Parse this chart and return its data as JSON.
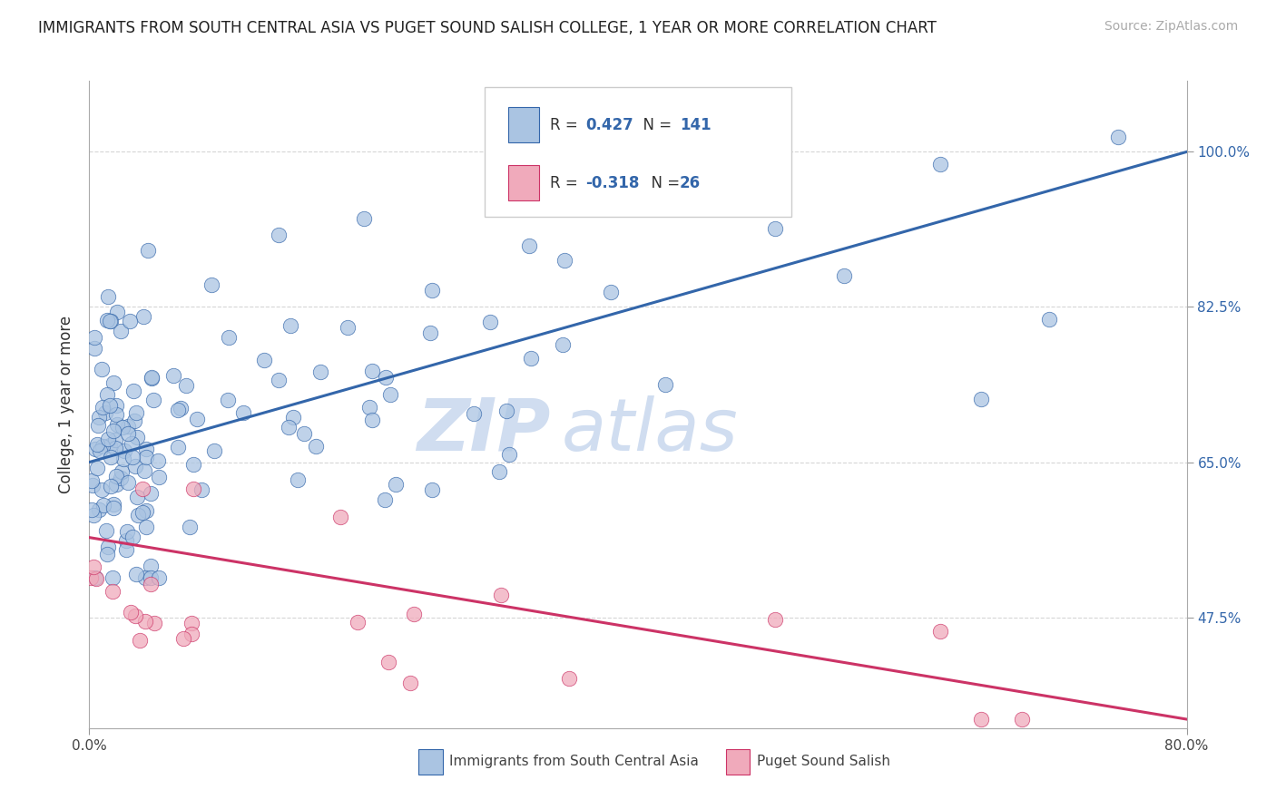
{
  "title": "IMMIGRANTS FROM SOUTH CENTRAL ASIA VS PUGET SOUND SALISH COLLEGE, 1 YEAR OR MORE CORRELATION CHART",
  "source": "Source: ZipAtlas.com",
  "ylabel": "College, 1 year or more",
  "legend_label_blue": "Immigrants from South Central Asia",
  "legend_label_pink": "Puget Sound Salish",
  "R_blue": 0.427,
  "N_blue": 141,
  "R_pink": -0.318,
  "N_pink": 26,
  "xlim": [
    0.0,
    80.0
  ],
  "ylim": [
    35.0,
    108.0
  ],
  "xticks": [
    0.0,
    80.0
  ],
  "xticklabels": [
    "0.0%",
    "80.0%"
  ],
  "yticks": [
    47.5,
    65.0,
    82.5,
    100.0
  ],
  "yticklabels": [
    "47.5%",
    "65.0%",
    "82.5%",
    "100.0%"
  ],
  "blue_color": "#aac4e2",
  "blue_edge_color": "#3366aa",
  "pink_color": "#f0aabb",
  "pink_edge_color": "#cc3366",
  "watermark_zip": "ZIP",
  "watermark_atlas": "atlas",
  "watermark_color": "#d0ddf0",
  "blue_trend_x0": 0.0,
  "blue_trend_y0": 65.0,
  "blue_trend_x1": 80.0,
  "blue_trend_y1": 100.0,
  "pink_trend_x0": 0.0,
  "pink_trend_y0": 56.5,
  "pink_trend_x1": 80.0,
  "pink_trend_y1": 36.0,
  "title_fontsize": 12,
  "source_fontsize": 10,
  "tick_fontsize": 11,
  "ylabel_fontsize": 12
}
